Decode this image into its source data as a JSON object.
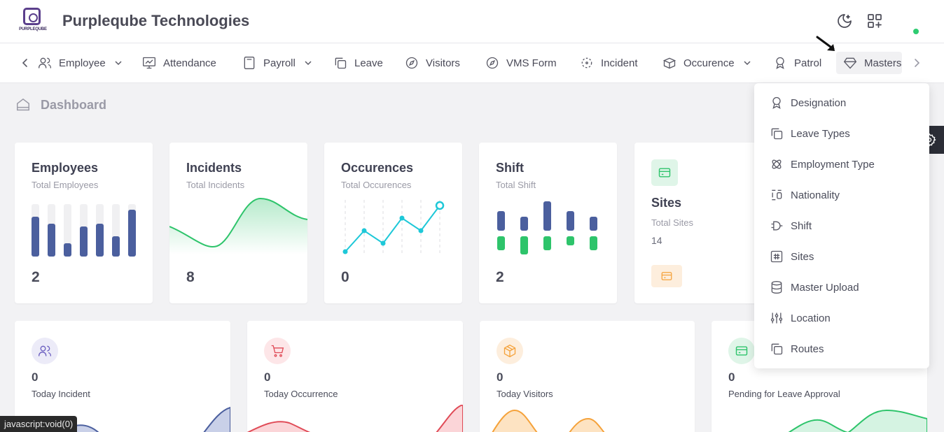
{
  "header": {
    "logo_text": "PURPLEQUBE",
    "company": "Purpleqube Technologies",
    "icons": [
      "moon-icon",
      "apps-icon"
    ]
  },
  "nav": {
    "items": [
      {
        "label": "Employee",
        "icon": "users-icon",
        "dropdown": true
      },
      {
        "label": "Attendance",
        "icon": "monitor-chart-icon",
        "dropdown": false
      },
      {
        "label": "Payroll",
        "icon": "calculator-icon",
        "dropdown": true
      },
      {
        "label": "Leave",
        "icon": "copy-icon",
        "dropdown": false
      },
      {
        "label": "Visitors",
        "icon": "compass-icon",
        "dropdown": false
      },
      {
        "label": "VMS Form",
        "icon": "compass-icon",
        "dropdown": false
      },
      {
        "label": "Incident",
        "icon": "focus-icon",
        "dropdown": false
      },
      {
        "label": "Occurence",
        "icon": "box-icon",
        "dropdown": true
      },
      {
        "label": "Patrol",
        "icon": "award-icon",
        "dropdown": false
      },
      {
        "label": "Masters",
        "icon": "diamond-icon",
        "dropdown": false
      }
    ]
  },
  "breadcrumb": {
    "label": "Dashboard"
  },
  "stat_cards": [
    {
      "title": "Employees",
      "subtitle": "Total Employees",
      "value": "2"
    },
    {
      "title": "Incidents",
      "subtitle": "Total Incidents",
      "value": "8"
    },
    {
      "title": "Occurences",
      "subtitle": "Total Occurences",
      "value": "0"
    },
    {
      "title": "Shift",
      "subtitle": "Total Shift",
      "value": "2"
    },
    {
      "title": "Sites",
      "subtitle": "Total Sites",
      "value": "14"
    }
  ],
  "small_cards": [
    {
      "value": "0",
      "label": "Today Incident",
      "color": "#4b5f9e"
    },
    {
      "value": "0",
      "label": "Today Occurrence",
      "color": "#e04b57"
    },
    {
      "value": "0",
      "label": "Today Visitors",
      "color": "#f5a23a"
    },
    {
      "value": "0",
      "label": "Pending for Leave Approval",
      "color": "#2ec46b"
    }
  ],
  "masters_menu": {
    "items": [
      {
        "label": "Designation",
        "icon": "award-icon"
      },
      {
        "label": "Leave Types",
        "icon": "copy-icon"
      },
      {
        "label": "Employment Type",
        "icon": "atom-icon"
      },
      {
        "label": "Nationality",
        "icon": "columns-icon"
      },
      {
        "label": "Shift",
        "icon": "shift-gate-icon"
      },
      {
        "label": "Sites",
        "icon": "hash-icon"
      },
      {
        "label": "Master Upload",
        "icon": "database-icon"
      },
      {
        "label": "Location",
        "icon": "sliders-icon"
      },
      {
        "label": "Routes",
        "icon": "copy-icon"
      }
    ]
  },
  "status_bar": {
    "text": "javascript:void(0)"
  },
  "colors": {
    "accent": "#5b3f8c",
    "bar_blue": "#4b5f9e",
    "green": "#2ec46b",
    "cyan": "#1ec8d8"
  }
}
